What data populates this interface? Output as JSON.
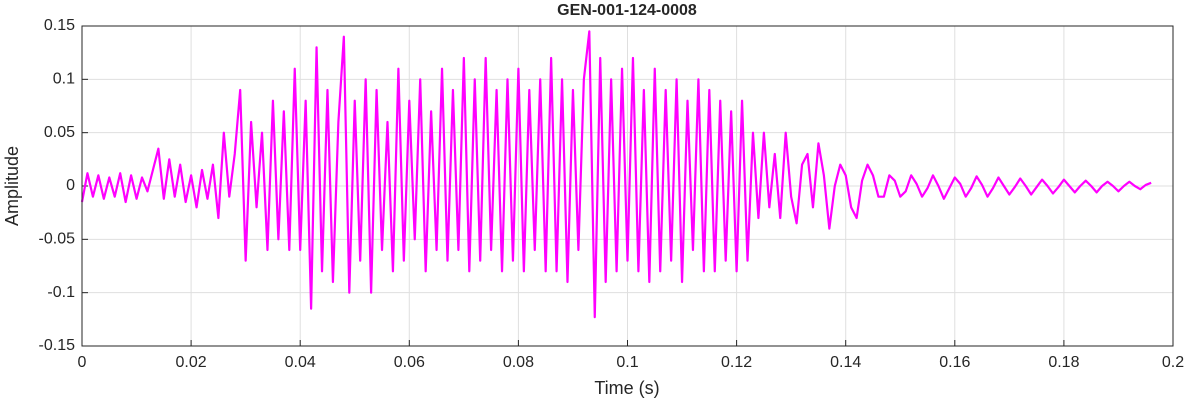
{
  "chart_data": {
    "type": "line",
    "title": "GEN-001-124-0008",
    "xlabel": "Time (s)",
    "ylabel": "Amplitude",
    "color": "#ff00ff",
    "grid": true,
    "xlim": [
      0,
      0.2
    ],
    "xticks": [
      0,
      0.02,
      0.04,
      0.06,
      0.08,
      0.1,
      0.12,
      0.14,
      0.16,
      0.18,
      0.2
    ],
    "ylim": [
      -0.15,
      0.15
    ],
    "yticks": [
      -0.15,
      -0.1,
      -0.05,
      0,
      0.05,
      0.1,
      0.15
    ],
    "x": [
      0,
      0.001,
      0.002,
      0.003,
      0.004,
      0.005,
      0.006,
      0.007,
      0.008,
      0.009,
      0.01,
      0.011,
      0.012,
      0.013,
      0.014,
      0.015,
      0.016,
      0.017,
      0.018,
      0.019,
      0.02,
      0.021,
      0.022,
      0.023,
      0.024,
      0.025,
      0.026,
      0.027,
      0.028,
      0.029,
      0.03,
      0.031,
      0.032,
      0.033,
      0.034,
      0.035,
      0.036,
      0.037,
      0.038,
      0.039,
      0.04,
      0.041,
      0.042,
      0.043,
      0.044,
      0.045,
      0.046,
      0.047,
      0.048,
      0.049,
      0.05,
      0.051,
      0.052,
      0.053,
      0.054,
      0.055,
      0.056,
      0.057,
      0.058,
      0.059,
      0.06,
      0.061,
      0.062,
      0.063,
      0.064,
      0.065,
      0.066,
      0.067,
      0.068,
      0.069,
      0.07,
      0.071,
      0.072,
      0.073,
      0.074,
      0.075,
      0.076,
      0.077,
      0.078,
      0.079,
      0.08,
      0.081,
      0.082,
      0.083,
      0.084,
      0.085,
      0.086,
      0.087,
      0.088,
      0.089,
      0.09,
      0.091,
      0.092,
      0.093,
      0.094,
      0.095,
      0.096,
      0.097,
      0.098,
      0.099,
      0.1,
      0.101,
      0.102,
      0.103,
      0.104,
      0.105,
      0.106,
      0.107,
      0.108,
      0.109,
      0.11,
      0.111,
      0.112,
      0.113,
      0.114,
      0.115,
      0.116,
      0.117,
      0.118,
      0.119,
      0.12,
      0.121,
      0.122,
      0.123,
      0.124,
      0.125,
      0.126,
      0.127,
      0.128,
      0.129,
      0.13,
      0.131,
      0.132,
      0.133,
      0.134,
      0.135,
      0.136,
      0.137,
      0.138,
      0.139,
      0.14,
      0.141,
      0.142,
      0.143,
      0.144,
      0.145,
      0.146,
      0.147,
      0.148,
      0.149,
      0.15,
      0.151,
      0.152,
      0.153,
      0.154,
      0.155,
      0.156,
      0.157,
      0.158,
      0.159,
      0.16,
      0.161,
      0.162,
      0.163,
      0.164,
      0.165,
      0.166,
      0.167,
      0.168,
      0.169,
      0.17,
      0.171,
      0.172,
      0.173,
      0.174,
      0.175,
      0.176,
      0.177,
      0.178,
      0.179,
      0.18,
      0.181,
      0.182,
      0.183,
      0.184,
      0.185,
      0.186,
      0.187,
      0.188,
      0.189,
      0.19,
      0.191,
      0.192,
      0.193,
      0.194,
      0.195,
      0.196
    ],
    "values": [
      -0.015,
      0.012,
      -0.01,
      0.01,
      -0.012,
      0.008,
      -0.01,
      0.012,
      -0.015,
      0.01,
      -0.012,
      0.008,
      -0.005,
      0.015,
      0.035,
      -0.012,
      0.025,
      -0.01,
      0.02,
      -0.015,
      0.01,
      -0.02,
      0.015,
      -0.012,
      0.02,
      -0.03,
      0.05,
      -0.01,
      0.03,
      0.09,
      -0.07,
      0.06,
      -0.02,
      0.05,
      -0.06,
      0.08,
      -0.05,
      0.07,
      -0.06,
      0.11,
      -0.06,
      0.08,
      -0.115,
      0.13,
      -0.08,
      0.09,
      -0.09,
      0.06,
      0.14,
      -0.1,
      0.08,
      -0.07,
      0.1,
      -0.1,
      0.09,
      -0.06,
      0.06,
      -0.08,
      0.11,
      -0.07,
      0.08,
      -0.05,
      0.1,
      -0.08,
      0.07,
      -0.06,
      0.11,
      -0.07,
      0.09,
      -0.06,
      0.12,
      -0.08,
      0.1,
      -0.07,
      0.12,
      -0.06,
      0.09,
      -0.08,
      0.1,
      -0.07,
      0.11,
      -0.08,
      0.09,
      -0.06,
      0.1,
      -0.08,
      0.12,
      -0.08,
      0.1,
      -0.09,
      0.09,
      -0.06,
      0.1,
      0.145,
      -0.123,
      0.12,
      -0.09,
      0.1,
      -0.08,
      0.11,
      -0.07,
      0.12,
      -0.08,
      0.09,
      -0.09,
      0.11,
      -0.08,
      0.09,
      -0.07,
      0.1,
      -0.09,
      0.08,
      -0.06,
      0.1,
      -0.08,
      0.09,
      -0.08,
      0.08,
      -0.07,
      0.07,
      -0.08,
      0.08,
      -0.07,
      0.05,
      -0.03,
      0.05,
      -0.02,
      0.03,
      -0.03,
      0.05,
      -0.01,
      -0.035,
      0.02,
      0.03,
      -0.02,
      0.04,
      0.01,
      -0.04,
      0,
      0.02,
      0.01,
      -0.02,
      -0.03,
      0.005,
      0.02,
      0.01,
      -0.01,
      -0.01,
      0.01,
      0.005,
      -0.01,
      -0.005,
      0.01,
      0.002,
      -0.01,
      -0.002,
      0.01,
      0,
      -0.012,
      -0.002,
      0.008,
      0.002,
      -0.01,
      -0.002,
      0.009,
      0.001,
      -0.01,
      -0.002,
      0.008,
      0,
      -0.008,
      -0.001,
      0.007,
      0,
      -0.008,
      -0.001,
      0.006,
      0,
      -0.007,
      -0.001,
      0.006,
      0,
      -0.006,
      0,
      0.005,
      0,
      -0.006,
      0,
      0.004,
      0,
      -0.005,
      0,
      0.004,
      0,
      -0.003,
      0.001,
      0.003
    ]
  }
}
